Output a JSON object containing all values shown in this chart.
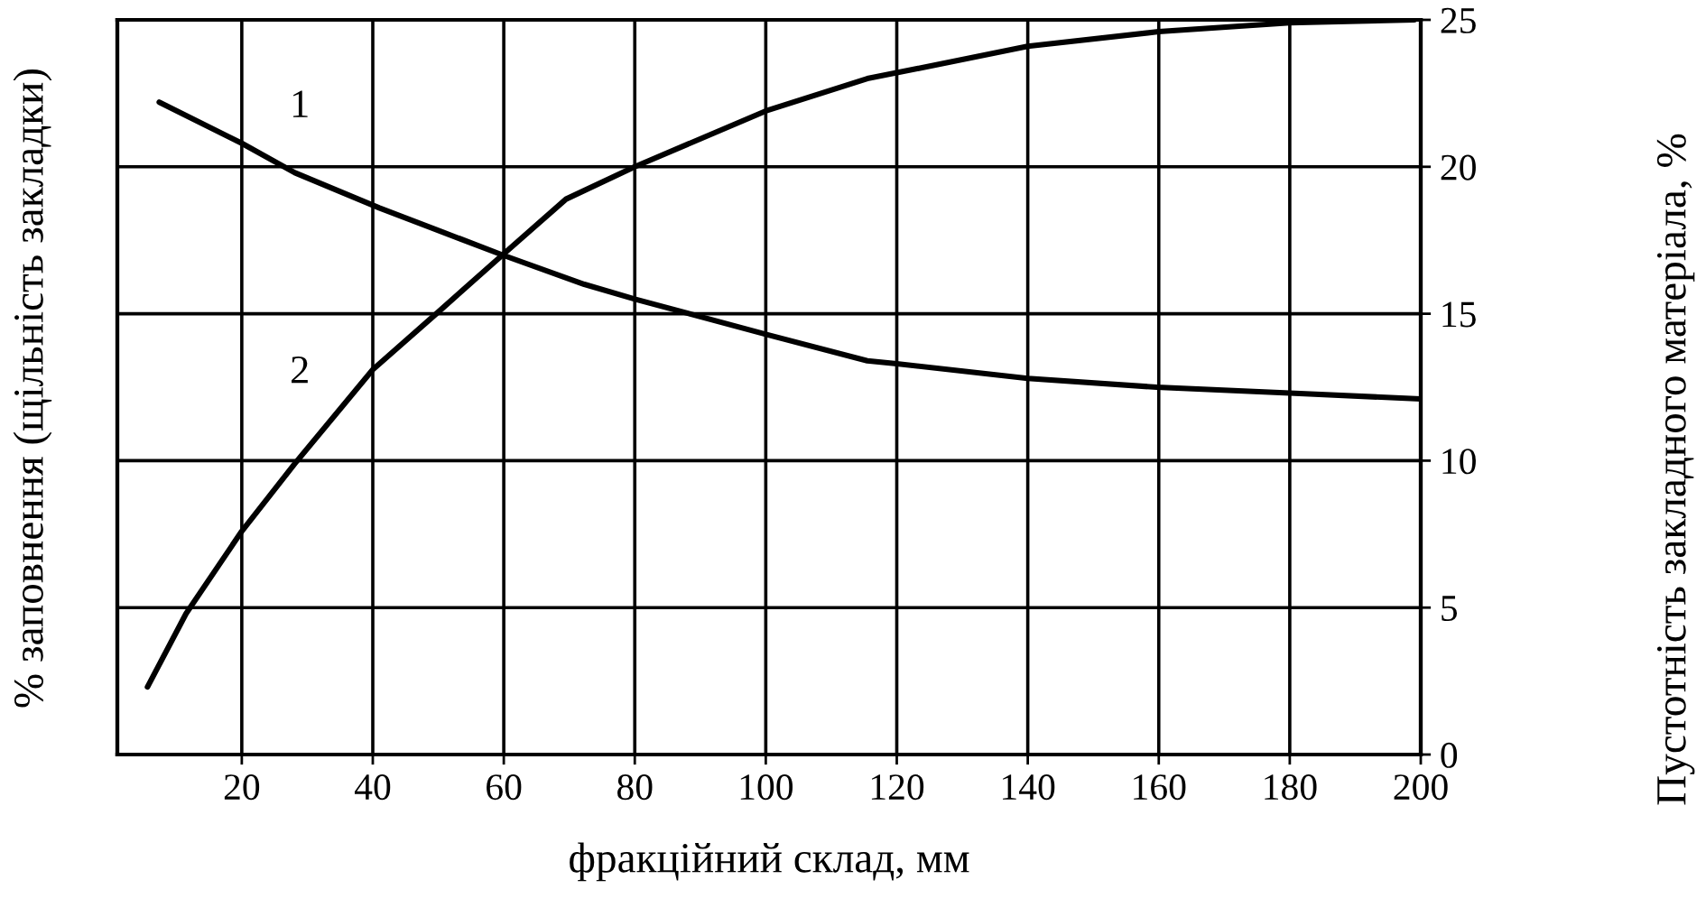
{
  "chart_data": {
    "type": "line",
    "xlabel": "фракційний склад, мм",
    "ylabel": "% заповнення (щільність закладки)",
    "y2label": "Пустотність закладного матеріала, %",
    "xlim": [
      1,
      200
    ],
    "xticks": [
      20,
      40,
      60,
      80,
      100,
      120,
      140,
      160,
      180,
      200
    ],
    "y2lim": [
      0,
      25
    ],
    "y2ticks": [
      0,
      5,
      10,
      15,
      20,
      25
    ],
    "grid": true,
    "legend": false,
    "marker": "none",
    "line_style": "solid",
    "series": [
      {
        "name": "1",
        "color": "#000000",
        "axis": "y2",
        "x": [
          7.4,
          20,
          28.1,
          41,
          59.8,
          72.3,
          80,
          100,
          115.5,
          120,
          140,
          159.7,
          180,
          200
        ],
        "values": [
          22.2,
          20.8,
          19.8,
          18.6,
          17.0,
          16.0,
          15.5,
          14.3,
          13.4,
          13.3,
          12.8,
          12.5,
          12.3,
          12.1
        ]
      },
      {
        "name": "2",
        "color": "#000000",
        "axis": "y2",
        "x": [
          5.6,
          11.5,
          20,
          28.1,
          40,
          50.2,
          59.8,
          69.5,
          80,
          100,
          115.5,
          120,
          140,
          160,
          180,
          199
        ],
        "values": [
          2.3,
          4.8,
          7.6,
          9.9,
          13.1,
          15.1,
          17.0,
          18.9,
          20.0,
          21.9,
          23.0,
          23.2,
          24.1,
          24.6,
          24.9,
          25.0
        ]
      }
    ]
  }
}
